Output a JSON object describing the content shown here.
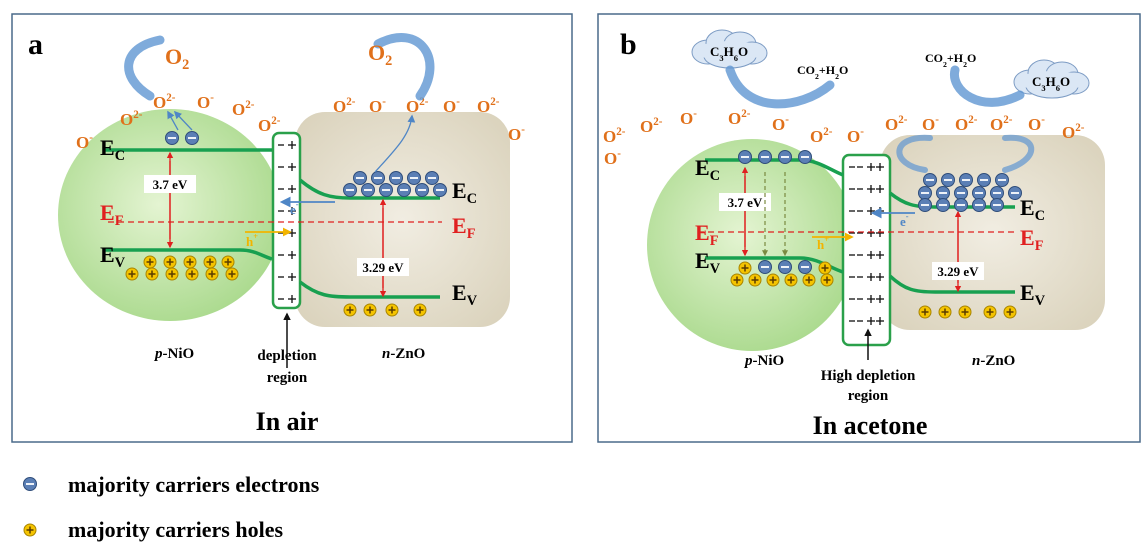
{
  "panels": [
    {
      "label": "a",
      "oxygen": [
        [
          {
            "t": "O"
          },
          {
            "sub": "2"
          }
        ],
        [
          {
            "t": "O"
          },
          {
            "sub": "2"
          }
        ]
      ],
      "ions": [
        [
          {
            "t": "O"
          },
          {
            "sup": "2-"
          }
        ],
        [
          {
            "t": "O"
          },
          {
            "sup": "-"
          }
        ],
        [
          {
            "t": "O"
          },
          {
            "sup": "2-"
          }
        ],
        [
          {
            "t": "O"
          },
          {
            "sup": "2-"
          }
        ],
        [
          {
            "t": "O"
          },
          {
            "sup": "-"
          }
        ],
        [
          {
            "t": "O"
          },
          {
            "sup": "2-"
          }
        ],
        [
          {
            "t": "O"
          },
          {
            "sup": "2-"
          }
        ],
        [
          {
            "t": "O"
          },
          {
            "sup": "-"
          }
        ],
        [
          {
            "t": "O"
          },
          {
            "sup": "2-"
          }
        ],
        [
          {
            "t": "O"
          },
          {
            "sup": "-"
          }
        ],
        [
          {
            "t": "O"
          },
          {
            "sup": "2-"
          }
        ],
        [
          {
            "t": "O"
          },
          {
            "sup": "-"
          }
        ]
      ],
      "ec_left": [
        {
          "t": "E"
        },
        {
          "sub": "C"
        }
      ],
      "ef_left": [
        {
          "t": "E"
        },
        {
          "sub": "F"
        }
      ],
      "ev_left": [
        {
          "t": "E"
        },
        {
          "sub": "V"
        }
      ],
      "ec_right": [
        {
          "t": "E"
        },
        {
          "sub": "C"
        }
      ],
      "ef_right": [
        {
          "t": "E"
        },
        {
          "sub": "F"
        }
      ],
      "ev_right": [
        {
          "t": "E"
        },
        {
          "sub": "V"
        }
      ],
      "gap_left": "3.7 eV",
      "gap_right": "3.29 eV",
      "electron": [
        {
          "t": "e"
        },
        {
          "sup": "-"
        }
      ],
      "hole": [
        {
          "t": "h"
        },
        {
          "sup": "+"
        }
      ],
      "left_material": [
        {
          "i": "p"
        },
        {
          "t": "-NiO"
        }
      ],
      "right_material": [
        {
          "i": "n"
        },
        {
          "t": "-ZnO"
        }
      ],
      "region": [
        "depletion",
        "region"
      ],
      "caption": "In air"
    },
    {
      "label": "b",
      "gas": [
        [
          {
            "t": "C"
          },
          {
            "sub": "3"
          },
          {
            "t": "H"
          },
          {
            "sub": "6"
          },
          {
            "t": "O"
          }
        ],
        [
          {
            "t": "C"
          },
          {
            "sub": "3"
          },
          {
            "t": "H"
          },
          {
            "sub": "6"
          },
          {
            "t": "O"
          }
        ]
      ],
      "products": [
        [
          {
            "t": "CO"
          },
          {
            "sub": "2"
          },
          {
            "t": "+H"
          },
          {
            "sub": "2"
          },
          {
            "t": "O"
          }
        ],
        [
          {
            "t": "CO"
          },
          {
            "sub": "2"
          },
          {
            "t": "+H"
          },
          {
            "sub": "2"
          },
          {
            "t": "O"
          }
        ]
      ],
      "ions": [
        [
          {
            "t": "O"
          },
          {
            "sup": "2-"
          }
        ],
        [
          {
            "t": "O"
          },
          {
            "sup": "2-"
          }
        ],
        [
          {
            "t": "O"
          },
          {
            "sup": "-"
          }
        ],
        [
          {
            "t": "O"
          },
          {
            "sup": "2-"
          }
        ],
        [
          {
            "t": "O"
          },
          {
            "sup": "-"
          }
        ],
        [
          {
            "t": "O"
          },
          {
            "sup": "2-"
          }
        ],
        [
          {
            "t": "O"
          },
          {
            "sup": "-"
          }
        ],
        [
          {
            "t": "O"
          },
          {
            "sup": "2-"
          }
        ],
        [
          {
            "t": "O"
          },
          {
            "sup": "-"
          }
        ],
        [
          {
            "t": "O"
          },
          {
            "sup": "2-"
          }
        ],
        [
          {
            "t": "O"
          },
          {
            "sup": "2-"
          }
        ],
        [
          {
            "t": "O"
          },
          {
            "sup": "-"
          }
        ],
        [
          {
            "t": "O"
          },
          {
            "sup": "2-"
          }
        ],
        [
          {
            "t": "O"
          },
          {
            "sup": "-"
          }
        ]
      ],
      "ec_left": [
        {
          "t": "E"
        },
        {
          "sub": "C"
        }
      ],
      "ef_left": [
        {
          "t": "E"
        },
        {
          "sub": "F"
        }
      ],
      "ev_left": [
        {
          "t": "E"
        },
        {
          "sub": "V"
        }
      ],
      "ec_right": [
        {
          "t": "E"
        },
        {
          "sub": "C"
        }
      ],
      "ef_right": [
        {
          "t": "E"
        },
        {
          "sub": "F"
        }
      ],
      "ev_right": [
        {
          "t": "E"
        },
        {
          "sub": "V"
        }
      ],
      "gap_left": "3.7 eV",
      "gap_right": "3.29 eV",
      "electron": [
        {
          "t": "e"
        },
        {
          "sup": "-"
        }
      ],
      "hole": [
        {
          "t": "h"
        },
        {
          "sup": "+"
        }
      ],
      "left_material": [
        {
          "i": "p"
        },
        {
          "t": "-NiO"
        }
      ],
      "right_material": [
        {
          "i": "n"
        },
        {
          "t": "-ZnO"
        }
      ],
      "region": [
        "High depletion",
        "region"
      ],
      "caption": "In acetone"
    }
  ],
  "legend": {
    "electrons": "majority carriers electrons",
    "holes": "majority carriers holes"
  }
}
